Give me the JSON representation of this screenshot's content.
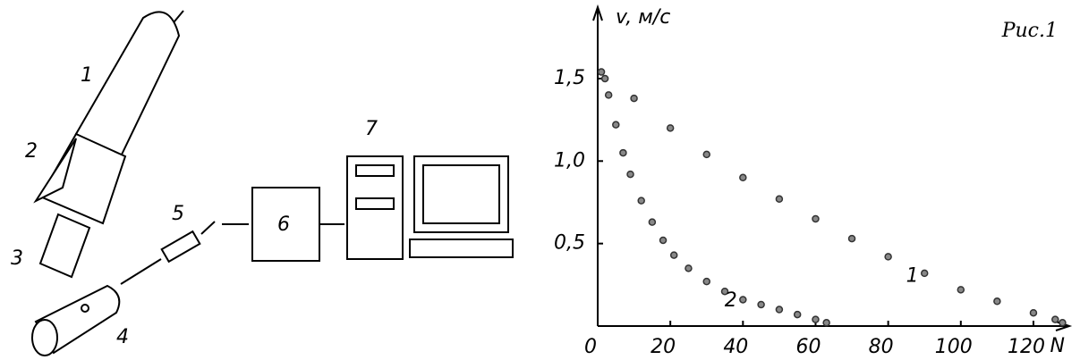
{
  "diagram": {
    "labels": [
      "1",
      "2",
      "3",
      "4",
      "5",
      "6",
      "7"
    ]
  },
  "chart_data": {
    "type": "scatter",
    "title": "Рис.1",
    "x_label": "N",
    "y_label": "v, м/с",
    "xlim": [
      0,
      130
    ],
    "ylim": [
      0,
      1.9
    ],
    "xticks": [
      0,
      20,
      40,
      60,
      80,
      100,
      120
    ],
    "yticks": [
      {
        "value": 0.5,
        "label": "0,5"
      },
      {
        "value": 1.0,
        "label": "1,0"
      },
      {
        "value": 1.5,
        "label": "1,5"
      }
    ],
    "series": [
      {
        "name": "1",
        "color": "#333333",
        "x": [
          2,
          10,
          20,
          30,
          40,
          50,
          60,
          70,
          80,
          90,
          100,
          110,
          120,
          126,
          128
        ],
        "values": [
          1.5,
          1.38,
          1.2,
          1.04,
          0.9,
          0.77,
          0.65,
          0.53,
          0.42,
          0.32,
          0.22,
          0.15,
          0.08,
          0.04,
          0.02
        ]
      },
      {
        "name": "2",
        "color": "#333333",
        "x": [
          1,
          3,
          5,
          7,
          9,
          12,
          15,
          18,
          21,
          25,
          30,
          35,
          40,
          45,
          50,
          55,
          60,
          63
        ],
        "values": [
          1.54,
          1.4,
          1.22,
          1.05,
          0.92,
          0.76,
          0.63,
          0.52,
          0.43,
          0.35,
          0.27,
          0.21,
          0.16,
          0.13,
          0.1,
          0.07,
          0.04,
          0.02
        ]
      }
    ]
  }
}
